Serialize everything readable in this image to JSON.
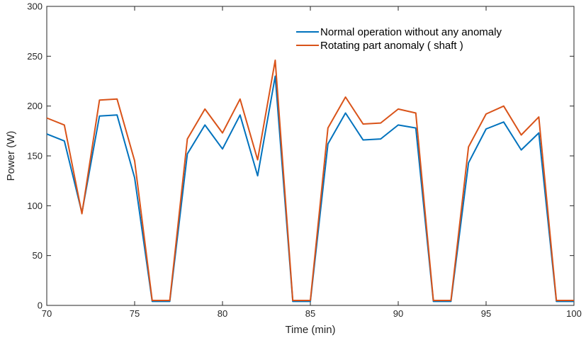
{
  "chart_data": {
    "type": "line",
    "title": "",
    "xlabel": "Time (min)",
    "ylabel": "Power (W)",
    "xlim": [
      70,
      100
    ],
    "ylim": [
      0,
      300
    ],
    "xticks": [
      "70",
      "75",
      "80",
      "85",
      "90",
      "95",
      "100"
    ],
    "yticks": [
      "0",
      "50",
      "100",
      "150",
      "200",
      "250",
      "300"
    ],
    "grid": false,
    "legend_position": "top-right",
    "x": [
      70,
      71,
      72,
      73,
      74,
      75,
      76,
      77,
      78,
      79,
      80,
      81,
      82,
      83,
      84,
      85,
      86,
      87,
      88,
      89,
      90,
      91,
      92,
      93,
      94,
      95,
      96,
      97,
      98,
      99,
      100
    ],
    "series": [
      {
        "name": "Normal operation without any anomaly",
        "color": "#0072BD",
        "values": [
          172,
          165,
          93,
          190,
          191,
          128,
          4,
          4,
          152,
          181,
          157,
          191,
          130,
          230,
          4,
          4,
          162,
          193,
          166,
          167,
          181,
          178,
          4,
          4,
          143,
          177,
          184,
          156,
          173,
          4,
          4
        ]
      },
      {
        "name": "Rotating part anomaly ( shaft )",
        "color": "#D95319",
        "values": [
          188,
          181,
          92,
          206,
          207,
          145,
          5,
          5,
          167,
          197,
          173,
          207,
          146,
          246,
          5,
          5,
          178,
          209,
          182,
          183,
          197,
          193,
          5,
          5,
          159,
          192,
          200,
          171,
          189,
          5,
          5
        ]
      }
    ]
  }
}
